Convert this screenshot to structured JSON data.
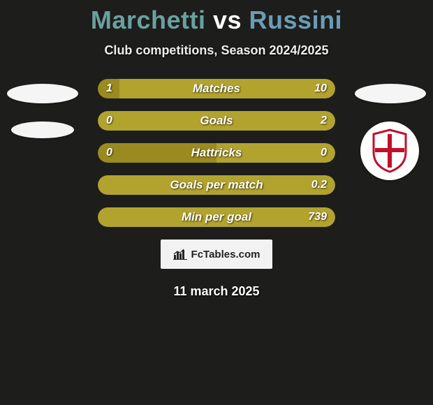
{
  "title": {
    "player1": "Marchetti",
    "vs": "vs",
    "player2": "Russini",
    "color_p1": "#6aa0a0",
    "color_p2": "#6a9db5"
  },
  "subtitle": "Club competitions, Season 2024/2025",
  "bar_style": {
    "height": 28,
    "radius": 14,
    "gap": 18,
    "font_size": 17,
    "value_font_size": 16
  },
  "palette": {
    "left": "#9a8a1f",
    "right": "#b2a32e",
    "bg": "#1d1d1c"
  },
  "bars": [
    {
      "label": "Matches",
      "left": "1",
      "right": "10",
      "left_pct": 9,
      "right_pct": 91,
      "left_color": "#9a8a1f",
      "right_color": "#b2a32e"
    },
    {
      "label": "Goals",
      "left": "0",
      "right": "2",
      "left_pct": 0,
      "right_pct": 100,
      "left_color": "#9a8a1f",
      "right_color": "#b2a32e"
    },
    {
      "label": "Hattricks",
      "left": "0",
      "right": "0",
      "left_pct": 50,
      "right_pct": 50,
      "left_color": "#9a8a1f",
      "right_color": "#b2a32e"
    },
    {
      "label": "Goals per match",
      "left": "",
      "right": "0.2",
      "left_pct": 0,
      "right_pct": 100,
      "left_color": "#9a8a1f",
      "right_color": "#b2a32e"
    },
    {
      "label": "Min per goal",
      "left": "",
      "right": "739",
      "left_pct": 0,
      "right_pct": 100,
      "left_color": "#9a8a1f",
      "right_color": "#b2a32e"
    }
  ],
  "badges": {
    "right_club": {
      "name": "padova-crest",
      "shield_fill": "#ffffff",
      "shield_stroke": "#c0102a",
      "cross_color": "#c0102a"
    }
  },
  "brand": {
    "icon": "bar-chart-icon",
    "text": "FcTables.com"
  },
  "date": "11 march 2025"
}
